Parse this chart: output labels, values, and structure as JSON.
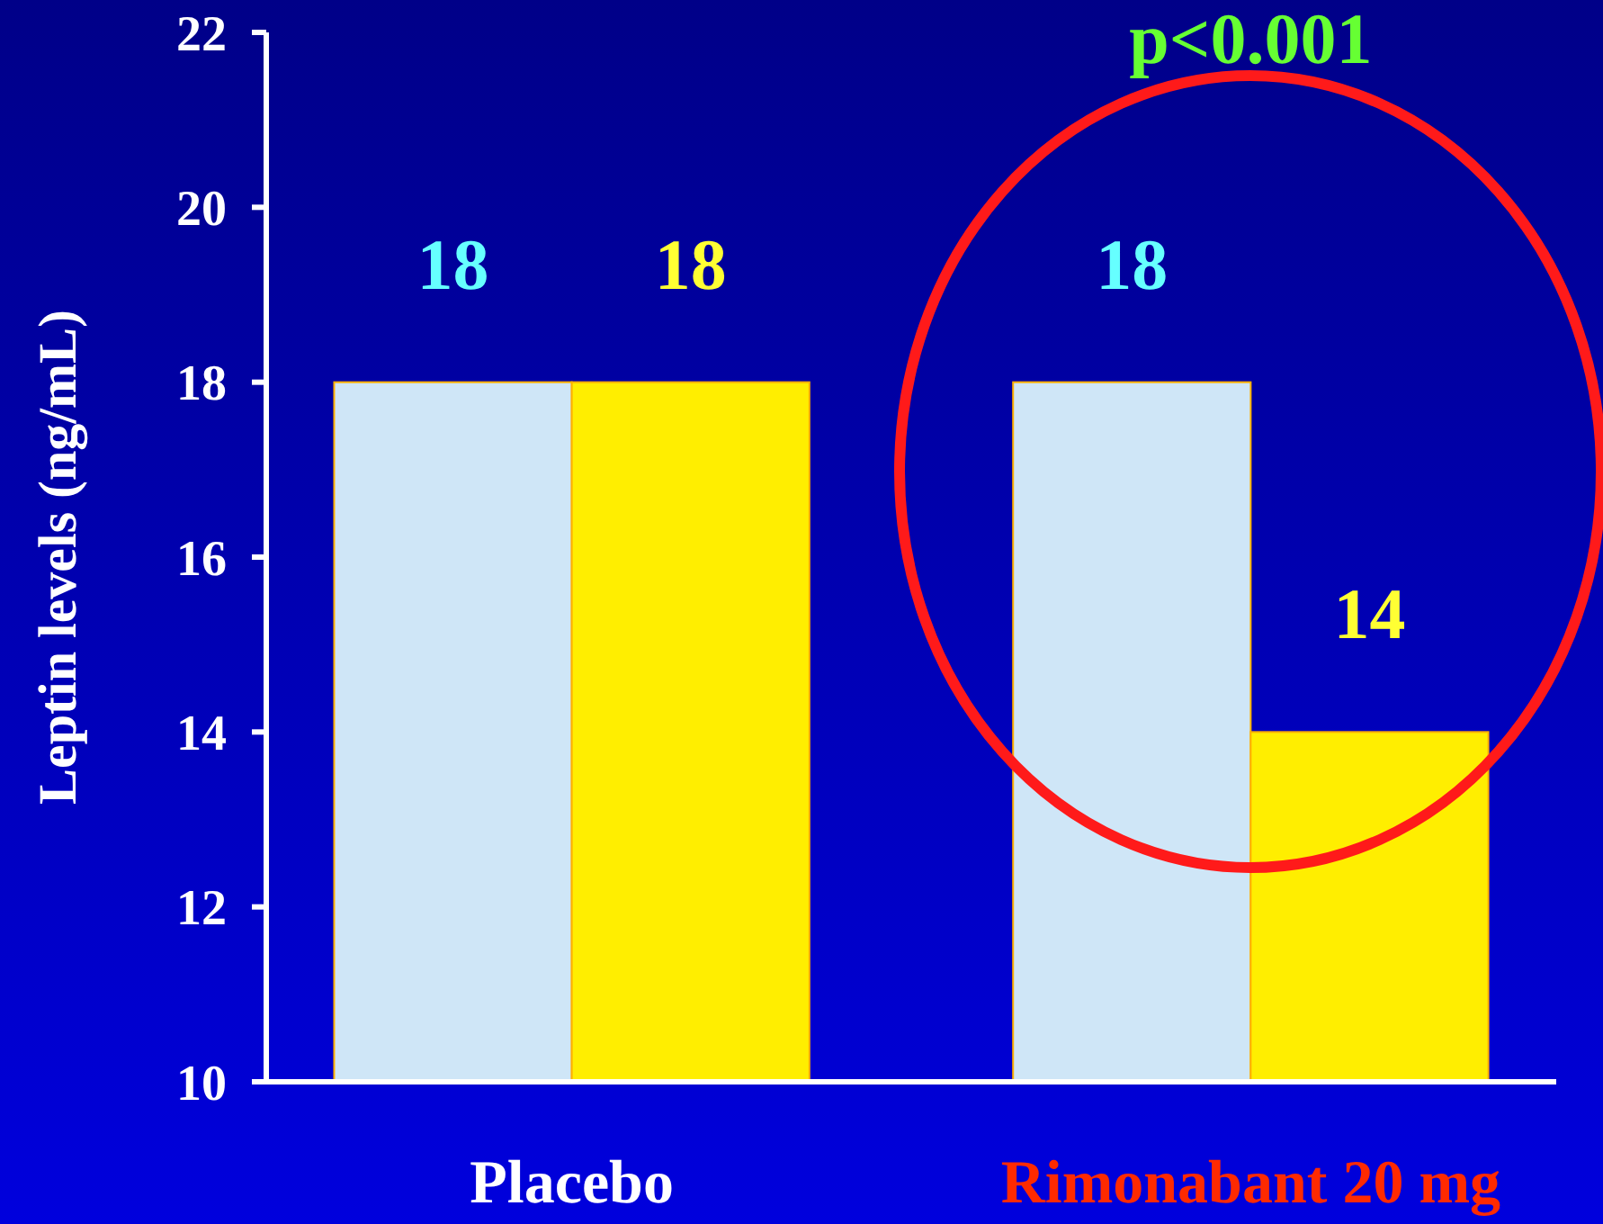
{
  "chart_data": {
    "type": "bar",
    "ylabel": "Leptin levels (ng/mL)",
    "categories": [
      "Placebo",
      "Rimonabant 20 mg"
    ],
    "series": [
      {
        "color": "#cfe6f7",
        "values": [
          18,
          18
        ]
      },
      {
        "color": "#ffee00",
        "values": [
          18,
          14
        ]
      }
    ],
    "ylim": [
      10,
      22
    ],
    "yticks": [
      10,
      12,
      14,
      16,
      18,
      20,
      22
    ],
    "data_labels": true,
    "grid": false,
    "annotations": [
      "p<0.001"
    ]
  }
}
